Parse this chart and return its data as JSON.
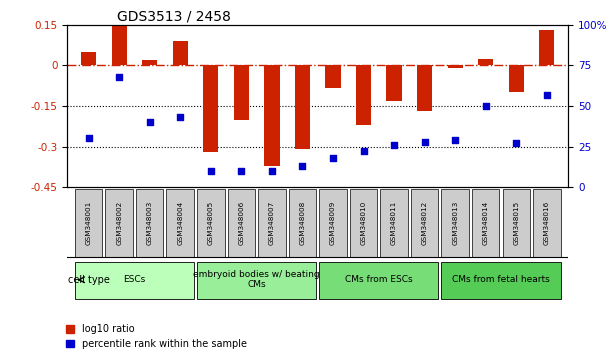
{
  "title": "GDS3513 / 2458",
  "samples": [
    "GSM348001",
    "GSM348002",
    "GSM348003",
    "GSM348004",
    "GSM348005",
    "GSM348006",
    "GSM348007",
    "GSM348008",
    "GSM348009",
    "GSM348010",
    "GSM348011",
    "GSM348012",
    "GSM348013",
    "GSM348014",
    "GSM348015",
    "GSM348016"
  ],
  "log10_ratio": [
    0.05,
    0.148,
    0.02,
    0.09,
    -0.32,
    -0.2,
    -0.37,
    -0.31,
    -0.085,
    -0.22,
    -0.13,
    -0.17,
    -0.01,
    0.025,
    -0.1,
    0.13
  ],
  "percentile_rank": [
    30,
    68,
    40,
    43,
    10,
    10,
    10,
    13,
    18,
    22,
    26,
    28,
    29,
    50,
    27,
    57
  ],
  "ylim_left": [
    -0.45,
    0.15
  ],
  "ylim_right": [
    0,
    100
  ],
  "yticks_left": [
    0.15,
    0.0,
    -0.15,
    -0.3,
    -0.45
  ],
  "yticks_right": [
    100,
    75,
    50,
    25,
    0
  ],
  "ytick_labels_left": [
    "0.15",
    "0",
    "-0.15",
    "-0.3",
    "-0.45"
  ],
  "ytick_labels_right": [
    "100%",
    "75",
    "50",
    "25",
    "0"
  ],
  "bar_color": "#CC2200",
  "scatter_color": "#0000CC",
  "hline_color": "#CC2200",
  "hline_style": "-.",
  "dot_line_color": "black",
  "dot_line_style": ":",
  "dot_line_values": [
    -0.15,
    -0.3
  ],
  "cell_groups": [
    {
      "label": "ESCs",
      "start": 0,
      "end": 3,
      "color": "#BBFFBB"
    },
    {
      "label": "embryoid bodies w/ beating\nCMs",
      "start": 4,
      "end": 7,
      "color": "#99EE99"
    },
    {
      "label": "CMs from ESCs",
      "start": 8,
      "end": 11,
      "color": "#77DD77"
    },
    {
      "label": "CMs from fetal hearts",
      "start": 12,
      "end": 15,
      "color": "#55CC55"
    }
  ],
  "legend_items": [
    {
      "label": "log10 ratio",
      "color": "#CC2200"
    },
    {
      "label": "percentile rank within the sample",
      "color": "#0000CC"
    }
  ],
  "cell_type_label": "cell type",
  "title_fontsize": 10,
  "tick_fontsize": 7.5,
  "label_fontsize": 6.5,
  "celltype_fontsize": 6.5
}
